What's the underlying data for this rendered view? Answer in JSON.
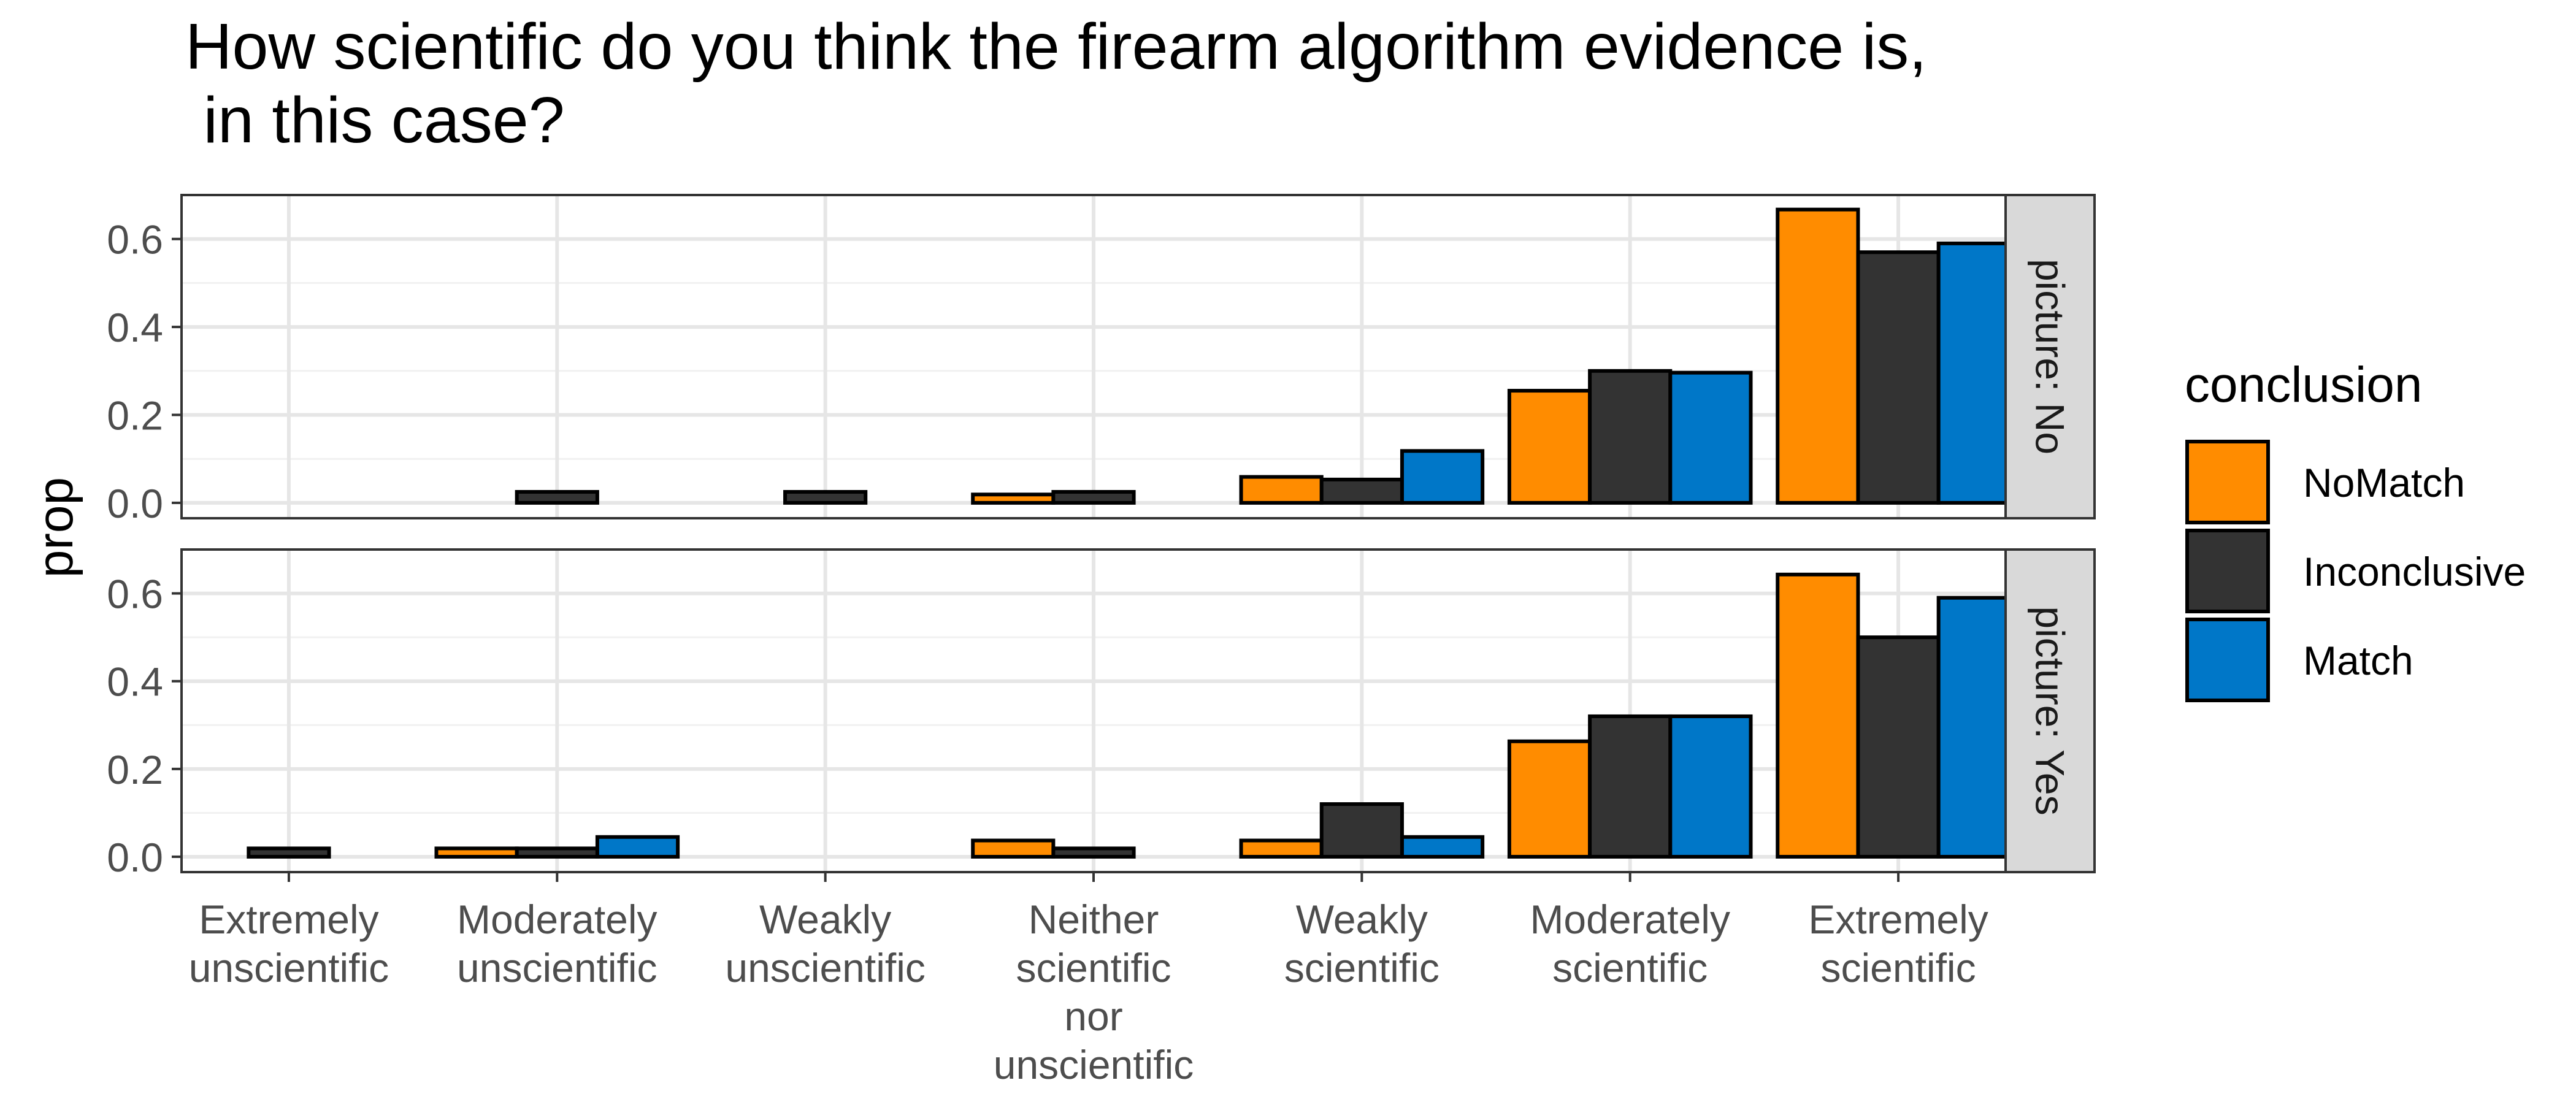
{
  "chart_data": {
    "type": "bar",
    "title_lines": [
      "How scientific do you think the firearm algorithm evidence is,",
      " in this case?"
    ],
    "xlabel": "",
    "ylabel": "prop",
    "ylim": [
      0,
      0.7
    ],
    "yticks": [
      0.0,
      0.2,
      0.4,
      0.6
    ],
    "ytick_labels": [
      "0.0",
      "0.2",
      "0.4",
      "0.6"
    ],
    "grid": true,
    "legend": {
      "title": "conclusion",
      "placement": "right",
      "entries": [
        "NoMatch",
        "Inconclusive",
        "Match"
      ]
    },
    "colors": {
      "NoMatch": "#FF8C00",
      "Inconclusive": "#333333",
      "Match": "#0077C8"
    },
    "categories": [
      [
        "Extremely",
        "unscientific"
      ],
      [
        "Moderately",
        "unscientific"
      ],
      [
        "Weakly",
        "unscientific"
      ],
      [
        "Neither",
        "scientific",
        "nor",
        "unscientific"
      ],
      [
        "Weakly",
        "scientific"
      ],
      [
        "Moderately",
        "scientific"
      ],
      [
        "Extremely",
        "scientific"
      ]
    ],
    "panels": [
      {
        "strip_label": "picture: No",
        "series": [
          {
            "name": "NoMatch",
            "values": [
              null,
              null,
              null,
              0.019,
              0.059,
              0.255,
              0.667
            ]
          },
          {
            "name": "Inconclusive",
            "values": [
              null,
              0.025,
              0.025,
              0.025,
              0.053,
              0.3,
              0.57
            ]
          },
          {
            "name": "Match",
            "values": [
              null,
              null,
              null,
              null,
              0.118,
              0.296,
              0.59
            ]
          }
        ]
      },
      {
        "strip_label": "picture: Yes",
        "series": [
          {
            "name": "NoMatch",
            "values": [
              null,
              0.019,
              null,
              0.037,
              0.037,
              0.263,
              0.643
            ]
          },
          {
            "name": "Inconclusive",
            "values": [
              0.019,
              0.019,
              null,
              0.019,
              0.12,
              0.32,
              0.5
            ]
          },
          {
            "name": "Match",
            "values": [
              null,
              0.045,
              null,
              null,
              0.045,
              0.32,
              0.59
            ]
          }
        ]
      }
    ]
  }
}
